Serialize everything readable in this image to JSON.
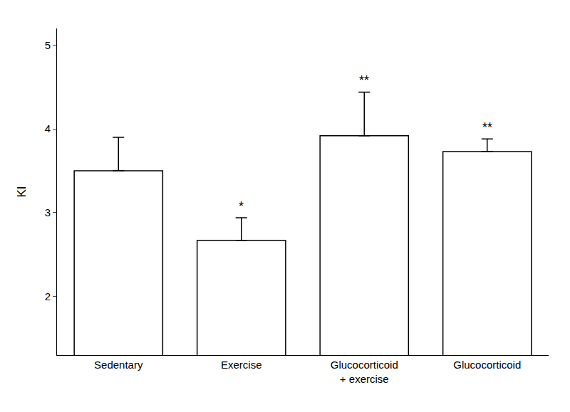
{
  "chart_data": {
    "type": "bar",
    "categories": [
      "Sedentary",
      "Exercise",
      "Glucocorticoid\n+ exercise",
      "Glucocorticoid"
    ],
    "values": [
      3.5,
      2.67,
      3.92,
      3.73
    ],
    "errors": [
      0.4,
      0.27,
      0.52,
      0.15
    ],
    "significance": [
      null,
      "*",
      "**",
      "**"
    ],
    "ylabel": "KI",
    "ylim": [
      1.3,
      5.2
    ],
    "yticks": [
      2,
      3,
      4,
      5
    ],
    "color": "#ffffff",
    "grid": false
  }
}
